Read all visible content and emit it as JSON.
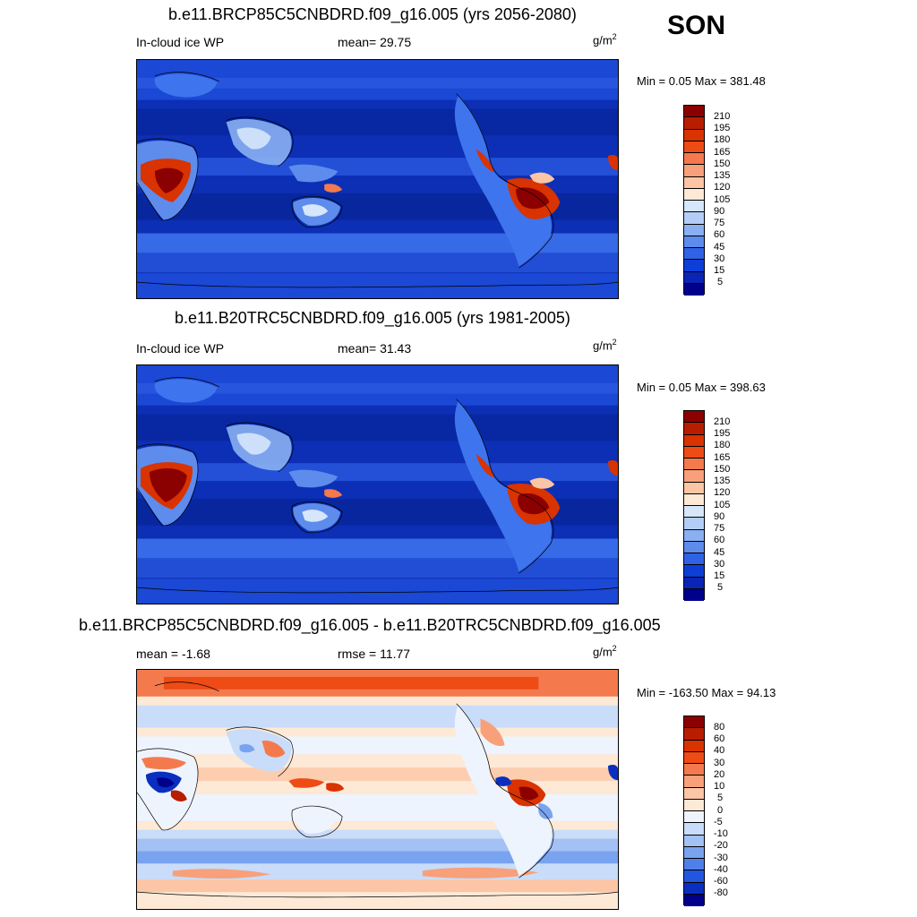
{
  "season": "SON",
  "panels": [
    {
      "title": "b.e11.BRCP85C5CNBDRD.f09_g16.005 (yrs 2056-2080)",
      "left_label": "In-cloud ice WP",
      "center_label": "mean=  29.75",
      "units": "g/m",
      "units_sup": "2",
      "minmax": "Min =   0.05 Max = 381.48",
      "colorbar": {
        "labels": [
          "210",
          "195",
          "180",
          "165",
          "150",
          "135",
          "120",
          "105",
          "90",
          "75",
          "60",
          "45",
          "30",
          "15",
          "5"
        ],
        "colors": [
          "#8b0000",
          "#b81d00",
          "#d83300",
          "#ee4b15",
          "#f47a4e",
          "#f8a07a",
          "#fcc5a5",
          "#fde9d6",
          "#d6e6fb",
          "#b3cdf7",
          "#8ab0f2",
          "#5d8cec",
          "#2f62e6",
          "#0d3fd6",
          "#0a24b5",
          "#00008b"
        ]
      },
      "map_stats": {
        "ocean": "#0c2fb5",
        "tropics": "#2c5be3",
        "midlat": "#3e74ee"
      }
    },
    {
      "title": "b.e11.B20TRC5CNBDRD.f09_g16.005 (yrs 1981-2005)",
      "left_label": "In-cloud ice WP",
      "center_label": "mean=  31.43",
      "units": "g/m",
      "units_sup": "2",
      "minmax": "Min =   0.05 Max = 398.63",
      "colorbar": {
        "labels": [
          "210",
          "195",
          "180",
          "165",
          "150",
          "135",
          "120",
          "105",
          "90",
          "75",
          "60",
          "45",
          "30",
          "15",
          "5"
        ],
        "colors": [
          "#8b0000",
          "#b81d00",
          "#d83300",
          "#ee4b15",
          "#f47a4e",
          "#f8a07a",
          "#fcc5a5",
          "#fde9d6",
          "#d6e6fb",
          "#b3cdf7",
          "#8ab0f2",
          "#5d8cec",
          "#2f62e6",
          "#0d3fd6",
          "#0a24b5",
          "#00008b"
        ]
      }
    },
    {
      "title": "b.e11.BRCP85C5CNBDRD.f09_g16.005 - b.e11.B20TRC5CNBDRD.f09_g16.005",
      "left_label": "mean =  -1.68",
      "center_label": "rmse =  11.77",
      "units": "g/m",
      "units_sup": "2",
      "minmax": "Min = -163.50 Max =  94.13",
      "colorbar": {
        "labels": [
          "80",
          "60",
          "40",
          "30",
          "20",
          "10",
          "5",
          "0",
          "-5",
          "-10",
          "-20",
          "-30",
          "-40",
          "-60",
          "-80"
        ],
        "colors": [
          "#8b0000",
          "#b81d00",
          "#d83300",
          "#ee4b15",
          "#f47a4e",
          "#f8a07a",
          "#fcc5a5",
          "#fde9d6",
          "#eef4fd",
          "#c9dcf9",
          "#a3c1f4",
          "#7aa3ef",
          "#4f80ea",
          "#2356e0",
          "#0a2fc0",
          "#00008b"
        ]
      }
    }
  ]
}
